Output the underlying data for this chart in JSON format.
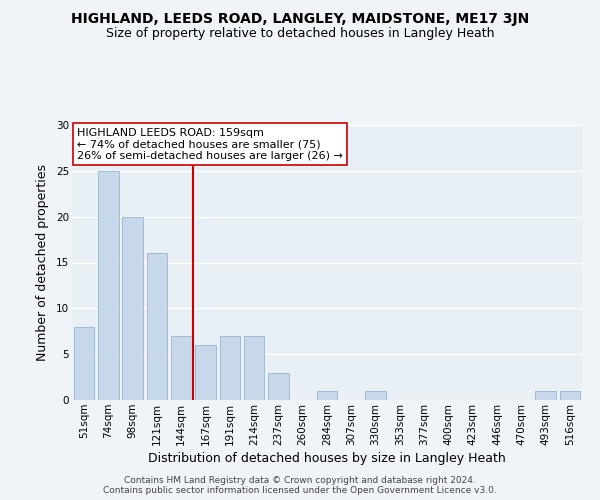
{
  "title": "HIGHLAND, LEEDS ROAD, LANGLEY, MAIDSTONE, ME17 3JN",
  "subtitle": "Size of property relative to detached houses in Langley Heath",
  "xlabel": "Distribution of detached houses by size in Langley Heath",
  "ylabel": "Number of detached properties",
  "bar_labels": [
    "51sqm",
    "74sqm",
    "98sqm",
    "121sqm",
    "144sqm",
    "167sqm",
    "191sqm",
    "214sqm",
    "237sqm",
    "260sqm",
    "284sqm",
    "307sqm",
    "330sqm",
    "353sqm",
    "377sqm",
    "400sqm",
    "423sqm",
    "446sqm",
    "470sqm",
    "493sqm",
    "516sqm"
  ],
  "bar_values": [
    8,
    25,
    20,
    16,
    7,
    6,
    7,
    7,
    3,
    0,
    1,
    0,
    1,
    0,
    0,
    0,
    0,
    0,
    0,
    1,
    1
  ],
  "bar_color": "#c8d8eb",
  "bar_edge_color": "#9ab5cc",
  "ylim": [
    0,
    30
  ],
  "yticks": [
    0,
    5,
    10,
    15,
    20,
    25,
    30
  ],
  "vline_color": "#cc0000",
  "vline_index": 5,
  "annotation_title": "HIGHLAND LEEDS ROAD: 159sqm",
  "annotation_line1": "← 74% of detached houses are smaller (75)",
  "annotation_line2": "26% of semi-detached houses are larger (26) →",
  "annotation_box_color": "#ffffff",
  "annotation_box_edge": "#cc0000",
  "footer1": "Contains HM Land Registry data © Crown copyright and database right 2024.",
  "footer2": "Contains public sector information licensed under the Open Government Licence v3.0.",
  "background_color": "#f0f4f8",
  "plot_bg_color": "#e8eff5",
  "grid_color": "#ffffff",
  "title_fontsize": 10,
  "subtitle_fontsize": 9,
  "axis_label_fontsize": 9,
  "tick_fontsize": 7.5,
  "footer_fontsize": 6.5,
  "annotation_fontsize": 8
}
